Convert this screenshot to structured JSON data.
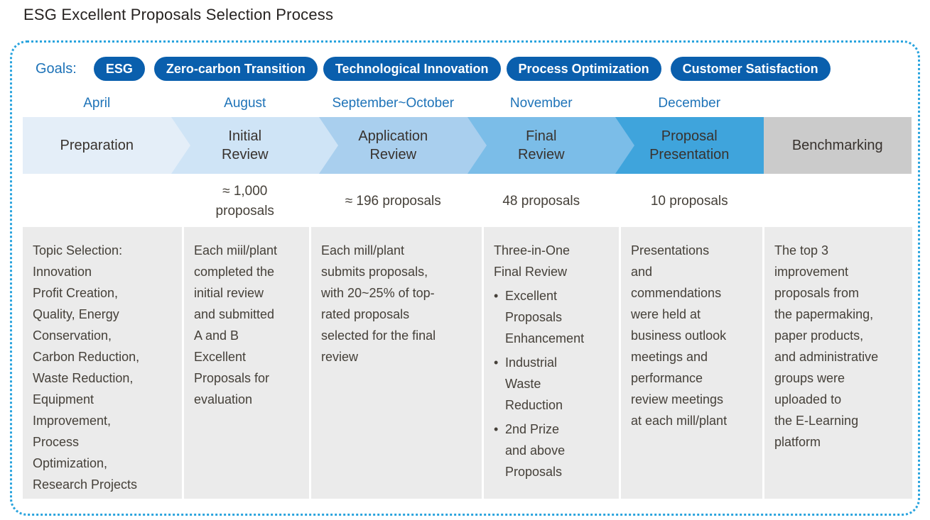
{
  "page": {
    "title": "ESG Excellent Proposals Selection Process"
  },
  "colors": {
    "pill_blue": "#0a5fad",
    "text_blue": "#1e73b8",
    "dot_border_blue": "#2aa4de",
    "panel_gray": "#ebebeb",
    "title_color": "#262220",
    "body_text": "#454039",
    "stage_text": "#38322e"
  },
  "goals": {
    "label": "Goals:",
    "pills": [
      {
        "label": "ESG",
        "connector_after": false
      },
      {
        "label": "Zero-carbon Transition",
        "connector_after": true
      },
      {
        "label": "Technological Innovation",
        "connector_after": true
      },
      {
        "label": "Process Optimization",
        "connector_after": false
      },
      {
        "label": "Customer Satisfaction",
        "connector_after": false
      }
    ]
  },
  "process": {
    "stages": [
      {
        "month": "April",
        "label": "Preparation",
        "count": "",
        "color": "#e4eef8",
        "description": "Topic Selection:\nInnovation\nProfit Creation,\nQuality, Energy\nConservation,\nCarbon Reduction,\nWaste Reduction,\nEquipment\nImprovement,\nProcess\nOptimization,\nResearch Projects"
      },
      {
        "month": "August",
        "label": "Initial\nReview",
        "count": "≈ 1,000\nproposals",
        "color": "#cfe4f6",
        "description": "Each miil/plant\ncompleted the\ninitial review\nand submitted\nA and B\nExcellent\nProposals for\nevaluation"
      },
      {
        "month": "September~October",
        "label": "Application\nReview",
        "count": "≈ 196 proposals",
        "color": "#a9cfee",
        "description": "Each mill/plant\nsubmits proposals,\nwith 20~25% of top-\nrated proposals\nselected for the final\nreview"
      },
      {
        "month": "November",
        "label": "Final\nReview",
        "count": "48 proposals",
        "color": "#7bbde8",
        "description_intro": "Three-in-One\nFinal Review",
        "bullets": [
          {
            "marker": "•",
            "text": "Excellent\nProposals\nEnhancement"
          },
          {
            "marker": "•",
            "text": "Industrial\nWaste\nReduction"
          },
          {
            "marker": "•",
            "text": "2nd Prize\nand above\nProposals"
          }
        ]
      },
      {
        "month": "December",
        "label": "Proposal\nPresentation",
        "count": "10 proposals",
        "color": "#3fa4dc",
        "description": "Presentations\nand\ncommendations\nwere held at\nbusiness outlook\nmeetings and\nperformance\nreview meetings\nat each mill/plant"
      },
      {
        "month": "",
        "label": "Benchmarking",
        "count": "",
        "color": "#cbcbcb",
        "description": "The top 3\nimprovement\nproposals from\nthe papermaking,\npaper products,\nand administrative\ngroups were\nuploaded to\nthe E-Learning\nplatform"
      }
    ]
  }
}
